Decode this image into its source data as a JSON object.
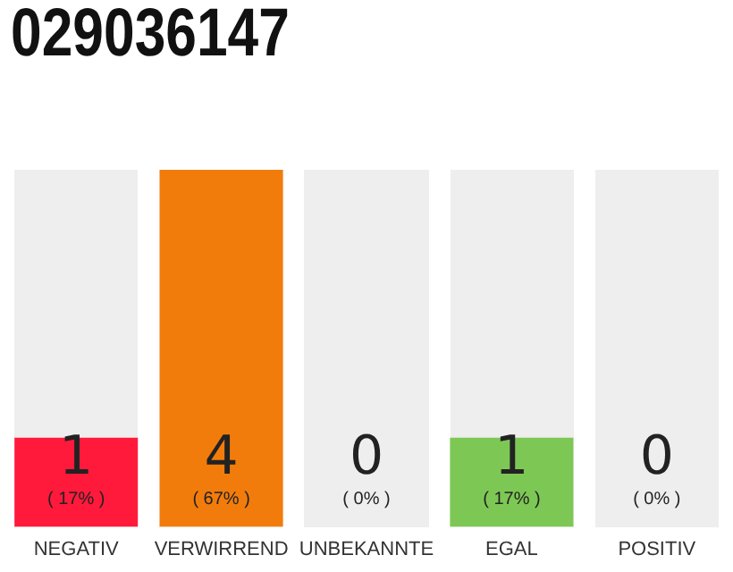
{
  "chart_data": {
    "type": "bar",
    "title": "029036147",
    "categories": [
      "NEGATIV",
      "VERWIRREND",
      "UNBEKANNTE",
      "EGAL",
      "POSITIV"
    ],
    "values": [
      1,
      4,
      0,
      1,
      0
    ],
    "colors": [
      "#ff1a3c",
      "#f27c0b",
      "#cccccc",
      "#7dc855",
      "#cccccc"
    ],
    "annotations": [
      "( 17% )",
      "( 67% )",
      "( 0% )",
      "( 17% )",
      "( 0% )"
    ],
    "tick_labels": "x",
    "grid": false,
    "legend": false,
    "data_labels": true
  }
}
